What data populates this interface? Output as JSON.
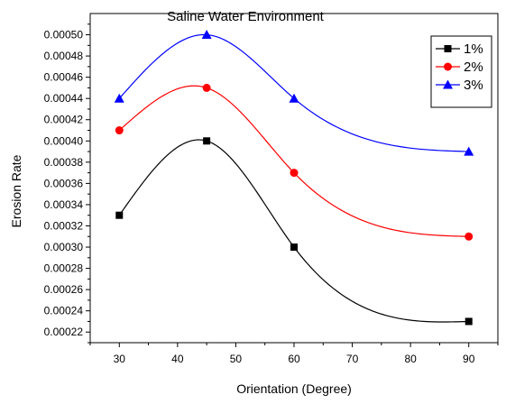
{
  "chart_data": {
    "type": "line",
    "title": "Saline Water Environment",
    "xlabel": "Orientation (Degree)",
    "ylabel": "Erosion Rate",
    "xlim": [
      25,
      95
    ],
    "ylim": [
      0.00021,
      0.00052
    ],
    "xticks": [
      "30",
      "40",
      "50",
      "60",
      "70",
      "80",
      "90"
    ],
    "yticks": [
      "0.00022",
      "0.00024",
      "0.00026",
      "0.00028",
      "0.00030",
      "0.00032",
      "0.00034",
      "0.00036",
      "0.00038",
      "0.00040",
      "0.00042",
      "0.00044",
      "0.00046",
      "0.00048",
      "0.00050"
    ],
    "x": [
      30,
      45,
      60,
      90
    ],
    "series": [
      {
        "name": "1%",
        "color": "#000000",
        "marker": "square",
        "values": [
          0.00033,
          0.0004,
          0.0003,
          0.00023
        ]
      },
      {
        "name": "2%",
        "color": "#ff0000",
        "marker": "circle",
        "values": [
          0.00041,
          0.00045,
          0.00037,
          0.00031
        ]
      },
      {
        "name": "3%",
        "color": "#0000ff",
        "marker": "triangle",
        "values": [
          0.00044,
          0.0005,
          0.00044,
          0.00039
        ]
      }
    ],
    "legend_position": "top-right",
    "grid": false,
    "line_style": "spline"
  }
}
